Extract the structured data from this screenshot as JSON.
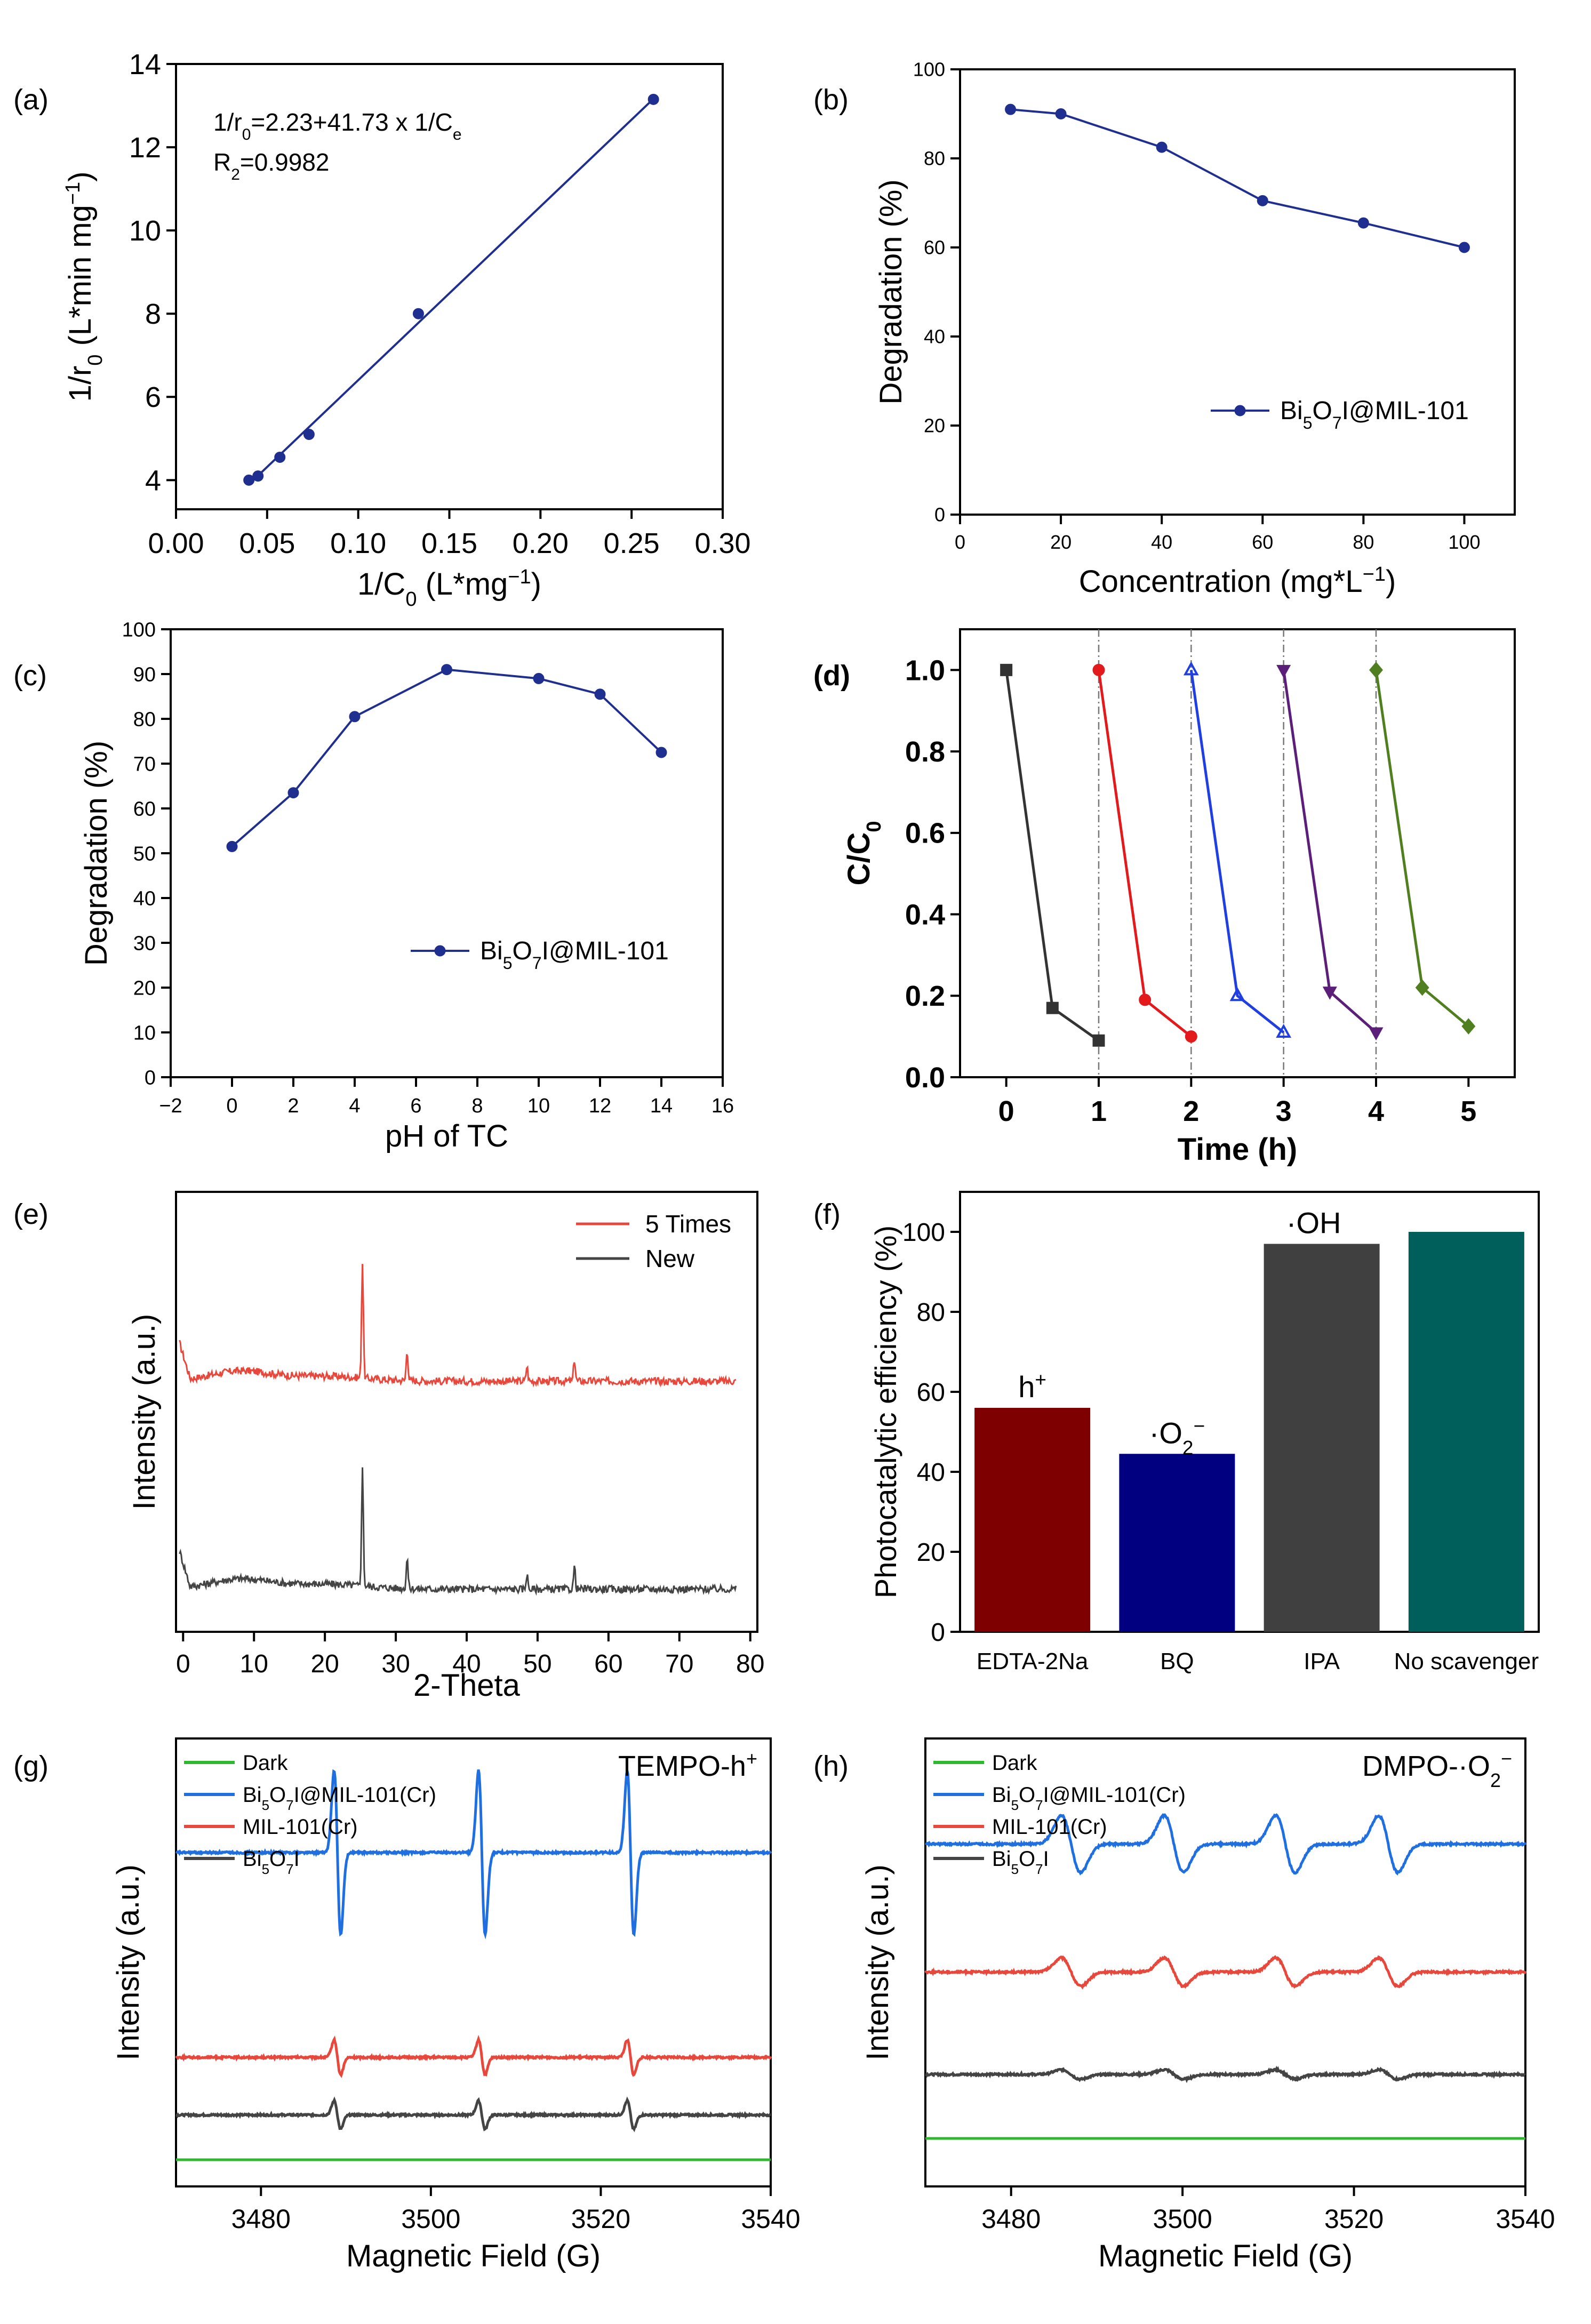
{
  "chart_data": [
    {
      "panel": "(a)",
      "type": "scatter",
      "xlabel": "1/C0 (L*mg-1)",
      "ylabel": "1/r0 (L*min mg-1)",
      "xlim": [
        0.0,
        0.3
      ],
      "ylim": [
        3.3,
        14.0
      ],
      "xticks": [
        0.0,
        0.05,
        0.1,
        0.15,
        0.2,
        0.25,
        0.3
      ],
      "xtick_labels": [
        "0.00",
        "0.05",
        "0.10",
        "0.15",
        "0.20",
        "0.25",
        "0.30"
      ],
      "yticks": [
        4,
        6,
        8,
        10,
        12,
        14
      ],
      "ytick_labels": [
        "4",
        "6",
        "8",
        "10",
        "12",
        "14"
      ],
      "fit": {
        "intercept": 2.23,
        "slope": 41.73,
        "x_range": [
          0.04,
          0.262
        ]
      },
      "annotation_eq": "1/r0=2.23+41.73 x 1/Ce",
      "annotation_r2": "R2=0.9982",
      "color": "#1f2f8f",
      "series": [
        {
          "x": [
            0.04,
            0.045,
            0.057,
            0.073,
            0.133,
            0.262
          ],
          "y": [
            4.0,
            4.1,
            4.55,
            5.1,
            8.0,
            13.15
          ]
        }
      ]
    },
    {
      "panel": "(b)",
      "type": "line",
      "xlabel": "Concentration (mg*L-1)",
      "ylabel": "Degradation (%)",
      "xlim": [
        0,
        110
      ],
      "ylim": [
        0,
        100
      ],
      "xticks": [
        0,
        20,
        40,
        60,
        80,
        100
      ],
      "xtick_labels": [
        "0",
        "20",
        "40",
        "60",
        "80",
        "100"
      ],
      "yticks": [
        0,
        20,
        40,
        60,
        80,
        100
      ],
      "ytick_labels": [
        "0",
        "20",
        "40",
        "60",
        "80",
        "100"
      ],
      "legend": "Bi5O7I@MIL-101",
      "legend_position": "bottom-right",
      "color": "#1f2f8f",
      "series": [
        {
          "name": "Bi5O7I@MIL-101",
          "x": [
            10,
            20,
            40,
            60,
            80,
            100
          ],
          "y": [
            91,
            90,
            82.5,
            70.5,
            65.5,
            60
          ]
        }
      ]
    },
    {
      "panel": "(c)",
      "type": "line",
      "xlabel": "pH of TC",
      "ylabel": "Degradation (%)",
      "xlim": [
        -2,
        16
      ],
      "ylim": [
        0,
        100
      ],
      "xticks": [
        -2,
        0,
        2,
        4,
        6,
        8,
        10,
        12,
        14,
        16
      ],
      "xtick_labels": [
        "−2",
        "0",
        "2",
        "4",
        "6",
        "8",
        "10",
        "12",
        "14",
        "16"
      ],
      "yticks": [
        0,
        10,
        20,
        30,
        40,
        50,
        60,
        70,
        80,
        90,
        100
      ],
      "ytick_labels": [
        "0",
        "10",
        "20",
        "30",
        "40",
        "50",
        "60",
        "70",
        "80",
        "90",
        "100"
      ],
      "legend": "Bi5O7I@MIL-101",
      "legend_position": "bottom-right",
      "color": "#1f2f8f",
      "series": [
        {
          "name": "Bi5O7I@MIL-101",
          "x": [
            0,
            2,
            4,
            7,
            10,
            12,
            14
          ],
          "y": [
            51.5,
            63.5,
            80.5,
            91,
            89,
            85.5,
            72.5
          ]
        }
      ]
    },
    {
      "panel": "(d)",
      "type": "line",
      "xlabel": "Time (h)",
      "ylabel": "C/C0",
      "xlim": [
        -0.5,
        5.5
      ],
      "ylim": [
        0.0,
        1.1
      ],
      "xticks": [
        0,
        1,
        2,
        3,
        4,
        5
      ],
      "xtick_labels": [
        "0",
        "1",
        "2",
        "3",
        "4",
        "5"
      ],
      "yticks": [
        0.0,
        0.2,
        0.4,
        0.6,
        0.8,
        1.0
      ],
      "ytick_labels": [
        "0.0",
        "0.2",
        "0.4",
        "0.6",
        "0.8",
        "1.0"
      ],
      "vlines": [
        1,
        2,
        3,
        4
      ],
      "series": [
        {
          "x": [
            0,
            0.5,
            1
          ],
          "y": [
            1.0,
            0.17,
            0.09
          ],
          "color": "#333333",
          "marker": "square"
        },
        {
          "x": [
            1,
            1.5,
            2
          ],
          "y": [
            1.0,
            0.19,
            0.1
          ],
          "color": "#e31a1c",
          "marker": "circle"
        },
        {
          "x": [
            2,
            2.5,
            3
          ],
          "y": [
            1.0,
            0.2,
            0.11
          ],
          "color": "#1f3fe0",
          "marker": "triangle-up"
        },
        {
          "x": [
            3,
            3.5,
            4
          ],
          "y": [
            1.0,
            0.21,
            0.11
          ],
          "color": "#5b1f7a",
          "marker": "triangle-down"
        },
        {
          "x": [
            4,
            4.5,
            5
          ],
          "y": [
            1.0,
            0.22,
            0.125
          ],
          "color": "#4f7f1f",
          "marker": "diamond"
        }
      ]
    },
    {
      "panel": "(e)",
      "type": "line",
      "xlabel": "2-Theta",
      "ylabel": "Intensity (a.u.)",
      "xlim": [
        -1,
        81
      ],
      "xticks": [
        0,
        10,
        20,
        30,
        40,
        50,
        60,
        70,
        80
      ],
      "xtick_labels": [
        "0",
        "10",
        "20",
        "30",
        "40",
        "50",
        "60",
        "70",
        "80"
      ],
      "legend_position": "top-right",
      "series": [
        {
          "name": "5 Times",
          "color": "#e8483c",
          "offset": 1.0,
          "x_range": [
            -0.5,
            78
          ],
          "peaks": [
            {
              "x": 25.3,
              "h": 0.95
            },
            {
              "x": 31.6,
              "h": 0.25
            },
            {
              "x": 55.2,
              "h": 0.18
            },
            {
              "x": 48.5,
              "h": 0.12
            }
          ]
        },
        {
          "name": "New",
          "color": "#444444",
          "offset": 0.0,
          "x_range": [
            -0.5,
            78
          ],
          "peaks": [
            {
              "x": 25.3,
              "h": 0.95
            },
            {
              "x": 31.6,
              "h": 0.25
            },
            {
              "x": 55.2,
              "h": 0.18
            },
            {
              "x": 48.5,
              "h": 0.12
            }
          ]
        }
      ]
    },
    {
      "panel": "(f)",
      "type": "bar",
      "xlabel": "",
      "ylabel": "Photocatalytic efficiency (%)",
      "ylim": [
        0,
        110
      ],
      "yticks": [
        0,
        20,
        40,
        60,
        80,
        100
      ],
      "ytick_labels": [
        "0",
        "20",
        "40",
        "60",
        "80",
        "100"
      ],
      "categories": [
        "EDTA-2Na",
        "BQ",
        "IPA",
        "No scavenger"
      ],
      "values": [
        56,
        44.5,
        97,
        100
      ],
      "colors": [
        "#7f0000",
        "#000080",
        "#404040",
        "#005f5a"
      ],
      "bar_labels": [
        "h+",
        "·O2−",
        "·OH",
        ""
      ]
    },
    {
      "panel": "(g)",
      "type": "line",
      "xlabel": "Magnetic Field (G)",
      "ylabel": "Intensity (a.u.)",
      "xlim": [
        3470,
        3540
      ],
      "xticks": [
        3480,
        3500,
        3520,
        3540
      ],
      "xtick_labels": [
        "3480",
        "3500",
        "3520",
        "3540"
      ],
      "title": "TEMPO-h+",
      "legend_position": "top-left",
      "line_centers": [
        3489,
        3506,
        3523.5
      ],
      "series": [
        {
          "name": "Dark",
          "color": "#2eb82e",
          "baseline": 0.0,
          "amplitude": 0.0
        },
        {
          "name": "Bi5O7I@MIL-101(Cr)",
          "color": "#1f6fe0",
          "baseline": 4.8,
          "amplitude": 2.6
        },
        {
          "name": "MIL-101(Cr)",
          "color": "#e8483c",
          "baseline": 1.6,
          "amplitude": 0.55
        },
        {
          "name": "Bi5O7I",
          "color": "#444444",
          "baseline": 0.7,
          "amplitude": 0.45
        }
      ]
    },
    {
      "panel": "(h)",
      "type": "line",
      "xlabel": "Magnetic Field (G)",
      "ylabel": "Intensity (a.u.)",
      "xlim": [
        3470,
        3540
      ],
      "xticks": [
        3480,
        3500,
        3520,
        3540
      ],
      "xtick_labels": [
        "3480",
        "3500",
        "3520",
        "3540"
      ],
      "title": "DMPO-·O2−",
      "legend_position": "top-left",
      "line_centers": [
        3487,
        3499,
        3512,
        3524
      ],
      "series": [
        {
          "name": "Dark",
          "color": "#2eb82e",
          "baseline": 0.0,
          "amplitude": 0.0
        },
        {
          "name": "Bi5O7I@MIL-101(Cr)",
          "color": "#1f6fe0",
          "baseline": 4.6,
          "amplitude": 0.9
        },
        {
          "name": "MIL-101(Cr)",
          "color": "#e8483c",
          "baseline": 2.6,
          "amplitude": 0.45
        },
        {
          "name": "Bi5O7I",
          "color": "#444444",
          "baseline": 1.0,
          "amplitude": 0.15
        }
      ]
    }
  ]
}
